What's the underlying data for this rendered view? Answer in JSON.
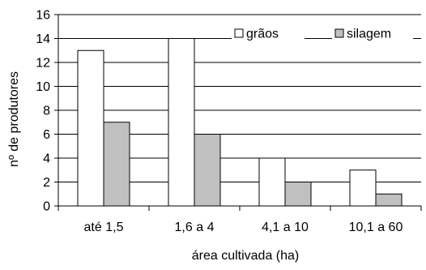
{
  "chart_data": {
    "type": "bar",
    "categories": [
      "até 1,5",
      "1,6 a 4",
      "4,1 a 10",
      "10,1 a 60"
    ],
    "series": [
      {
        "name": "grãos",
        "values": [
          13,
          14,
          4,
          3
        ],
        "color": "#ffffff"
      },
      {
        "name": "silagem",
        "values": [
          7,
          6,
          2,
          1
        ],
        "color": "#c0c0c0"
      }
    ],
    "xlabel": "área cultivada (ha)",
    "ylabel": "nº de produtores",
    "ylim": [
      0,
      16
    ],
    "yticks": [
      "0",
      "2",
      "4",
      "6",
      "8",
      "10",
      "12",
      "14",
      "16"
    ],
    "grid": true,
    "legend_position": "top-right"
  }
}
